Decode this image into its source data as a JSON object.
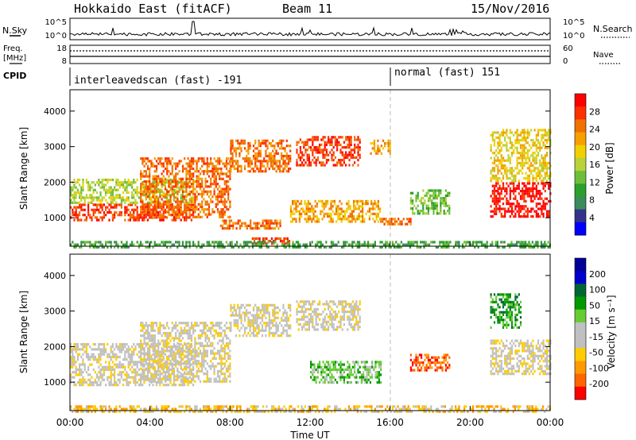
{
  "header": {
    "title": "Hokkaido East (fitACF)",
    "beam": "Beam 11",
    "date": "15/Nov/2016"
  },
  "noise_panel": {
    "left_label": "N.Sky",
    "right_label": "N.Search",
    "left_ticks": [
      "10^5",
      "10^0"
    ],
    "right_ticks": [
      "10^5",
      "10^0"
    ]
  },
  "freq_panel": {
    "left_label_line1": "Freq.",
    "left_label_line2": "[MHz]",
    "right_label": "Nave",
    "left_ticks": [
      "18",
      "8"
    ],
    "right_ticks": [
      "60",
      "0"
    ]
  },
  "cpid_panel": {
    "label": "CPID",
    "mode1": "interleavedscan (fast) -191",
    "mode2": "normal (fast) 151"
  },
  "colors": {
    "power_scale": [
      "#0000ff",
      "#33338a",
      "#3a8c5a",
      "#2ca02c",
      "#6dbf3a",
      "#b8d23a",
      "#f0d000",
      "#f5a000",
      "#f07000",
      "#ff3000",
      "#ff0000"
    ],
    "velocity_scale": [
      "#ff0000",
      "#ff6600",
      "#ff9900",
      "#ffcc00",
      "#c0c0c0",
      "#c0c0c0",
      "#66cc33",
      "#009900",
      "#006633",
      "#0000cc",
      "#000099"
    ]
  },
  "chart_data": [
    {
      "type": "heatmap",
      "name": "power",
      "ylabel": "Slant Range [km]",
      "yticks": [
        "1000",
        "2000",
        "3000",
        "4000"
      ],
      "ylim": [
        200,
        4600
      ],
      "colorbar_label": "Power [dB]",
      "colorbar_ticks": [
        "4",
        "8",
        "12",
        "16",
        "20",
        "24",
        "28"
      ],
      "regions": [
        {
          "t0": 0.0,
          "t1": 6.2,
          "r0": 900,
          "r1": 1400,
          "level": 9
        },
        {
          "t0": 0.0,
          "t1": 6.2,
          "r0": 1400,
          "r1": 2100,
          "level": 5
        },
        {
          "t0": 3.5,
          "t1": 8.0,
          "r0": 1000,
          "r1": 2700,
          "level": 8
        },
        {
          "t0": 8.0,
          "t1": 11.0,
          "r0": 2300,
          "r1": 3200,
          "level": 8
        },
        {
          "t0": 11.3,
          "t1": 14.5,
          "r0": 2500,
          "r1": 3300,
          "level": 9
        },
        {
          "t0": 15.0,
          "t1": 16.0,
          "r0": 2800,
          "r1": 3200,
          "level": 7
        },
        {
          "t0": 7.5,
          "t1": 10.5,
          "r0": 700,
          "r1": 950,
          "level": 8
        },
        {
          "t0": 11.0,
          "t1": 15.5,
          "r0": 900,
          "r1": 1500,
          "level": 7
        },
        {
          "t0": 15.5,
          "t1": 17.0,
          "r0": 800,
          "r1": 1000,
          "level": 8
        },
        {
          "t0": 17.0,
          "t1": 19.0,
          "r0": 1100,
          "r1": 1800,
          "level": 4
        },
        {
          "t0": 21.0,
          "t1": 24.0,
          "r0": 1000,
          "r1": 2000,
          "level": 10
        },
        {
          "t0": 21.0,
          "t1": 24.0,
          "r0": 2000,
          "r1": 3500,
          "level": 6
        },
        {
          "t0": 9.0,
          "t1": 11.0,
          "r0": 300,
          "r1": 450,
          "level": 9
        },
        {
          "t0": 0.0,
          "t1": 24.0,
          "r0": 200,
          "r1": 350,
          "level": 3
        }
      ]
    },
    {
      "type": "heatmap",
      "name": "velocity",
      "ylabel": "Slant Range [km]",
      "yticks": [
        "1000",
        "2000",
        "3000",
        "4000"
      ],
      "ylim": [
        200,
        4600
      ],
      "colorbar_label": "Velocity [m s⁻¹]",
      "colorbar_ticks": [
        "200",
        "100",
        "50",
        "15",
        "-15",
        "-50",
        "-100",
        "-200"
      ],
      "xlabel": "Time UT",
      "xticks": [
        "00:00",
        "04:00",
        "08:00",
        "12:00",
        "16:00",
        "20:00",
        "00:00"
      ],
      "regions": [
        {
          "t0": 0.0,
          "t1": 6.2,
          "r0": 900,
          "r1": 2100,
          "level": 4
        },
        {
          "t0": 3.5,
          "t1": 8.0,
          "r0": 1000,
          "r1": 2700,
          "level": 4
        },
        {
          "t0": 8.0,
          "t1": 11.0,
          "r0": 2300,
          "r1": 3200,
          "level": 4
        },
        {
          "t0": 11.3,
          "t1": 14.5,
          "r0": 2500,
          "r1": 3300,
          "level": 4
        },
        {
          "t0": 12.0,
          "t1": 15.5,
          "r0": 1000,
          "r1": 1600,
          "level": 6
        },
        {
          "t0": 17.0,
          "t1": 19.0,
          "r0": 1300,
          "r1": 1800,
          "level": 1
        },
        {
          "t0": 21.0,
          "t1": 24.0,
          "r0": 1200,
          "r1": 2200,
          "level": 4
        },
        {
          "t0": 21.0,
          "t1": 22.5,
          "r0": 2500,
          "r1": 3500,
          "level": 7
        },
        {
          "t0": 0.0,
          "t1": 24.0,
          "r0": 200,
          "r1": 350,
          "level": 3
        }
      ]
    }
  ]
}
